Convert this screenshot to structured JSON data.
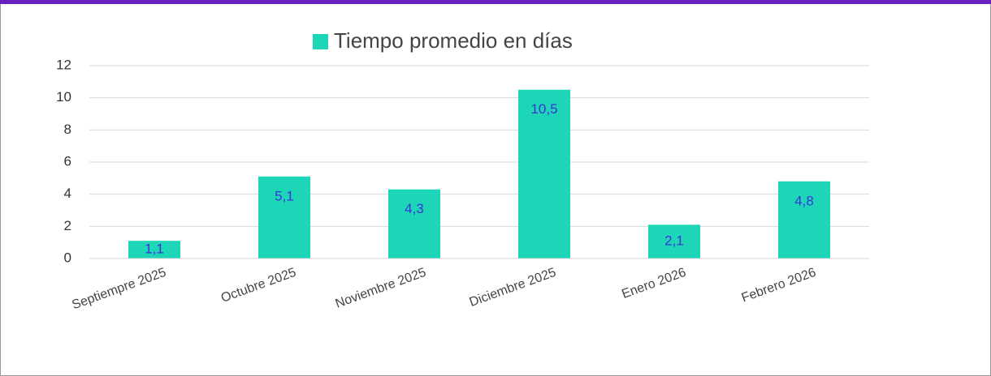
{
  "chart_data": {
    "type": "bar",
    "categories": [
      "Septiempre 2025",
      "Octubre 2025",
      "Noviembre 2025",
      "Diciembre 2025",
      "Enero 2026",
      "Febrero 2026"
    ],
    "series": [
      {
        "name": "Tiempo promedio en días",
        "color": "#1dd6b8",
        "values": [
          1.1,
          5.1,
          4.3,
          10.5,
          2.1,
          4.8
        ],
        "value_labels": [
          "1,1",
          "5,1",
          "4,3",
          "10,5",
          "2,1",
          "4,8"
        ]
      }
    ],
    "ylim": [
      0,
      12
    ],
    "yticks": [
      0,
      2,
      4,
      6,
      8,
      10,
      12
    ],
    "grid": true,
    "legend": "top"
  }
}
